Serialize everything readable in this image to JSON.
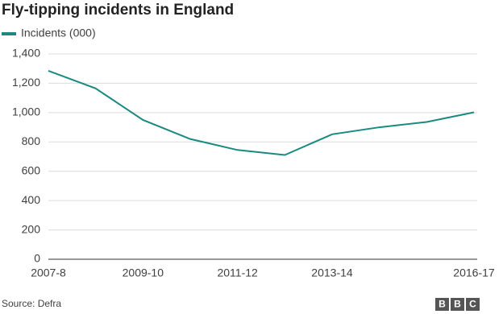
{
  "chart_data": {
    "type": "line",
    "title": "Fly-tipping incidents in England",
    "categories": [
      "2007-8",
      null,
      "2009-10",
      null,
      "2011-12",
      null,
      "2013-14",
      null,
      null,
      "2016-17"
    ],
    "series": [
      {
        "name": "Incidents (000)",
        "color": "#1a8a80",
        "values": [
          1285,
          1165,
          950,
          820,
          745,
          711,
          852,
          900,
          936,
          1002
        ]
      }
    ],
    "ylim": [
      0,
      1400
    ],
    "yticks": [
      0,
      200,
      400,
      600,
      800,
      {
        "value": 1000,
        "label": "1,000"
      },
      {
        "value": 1200,
        "label": "1,200"
      },
      {
        "value": 1400,
        "label": "1,400"
      }
    ],
    "grid": true,
    "source": "Source: Defra",
    "logo": [
      "B",
      "B",
      "C"
    ]
  }
}
